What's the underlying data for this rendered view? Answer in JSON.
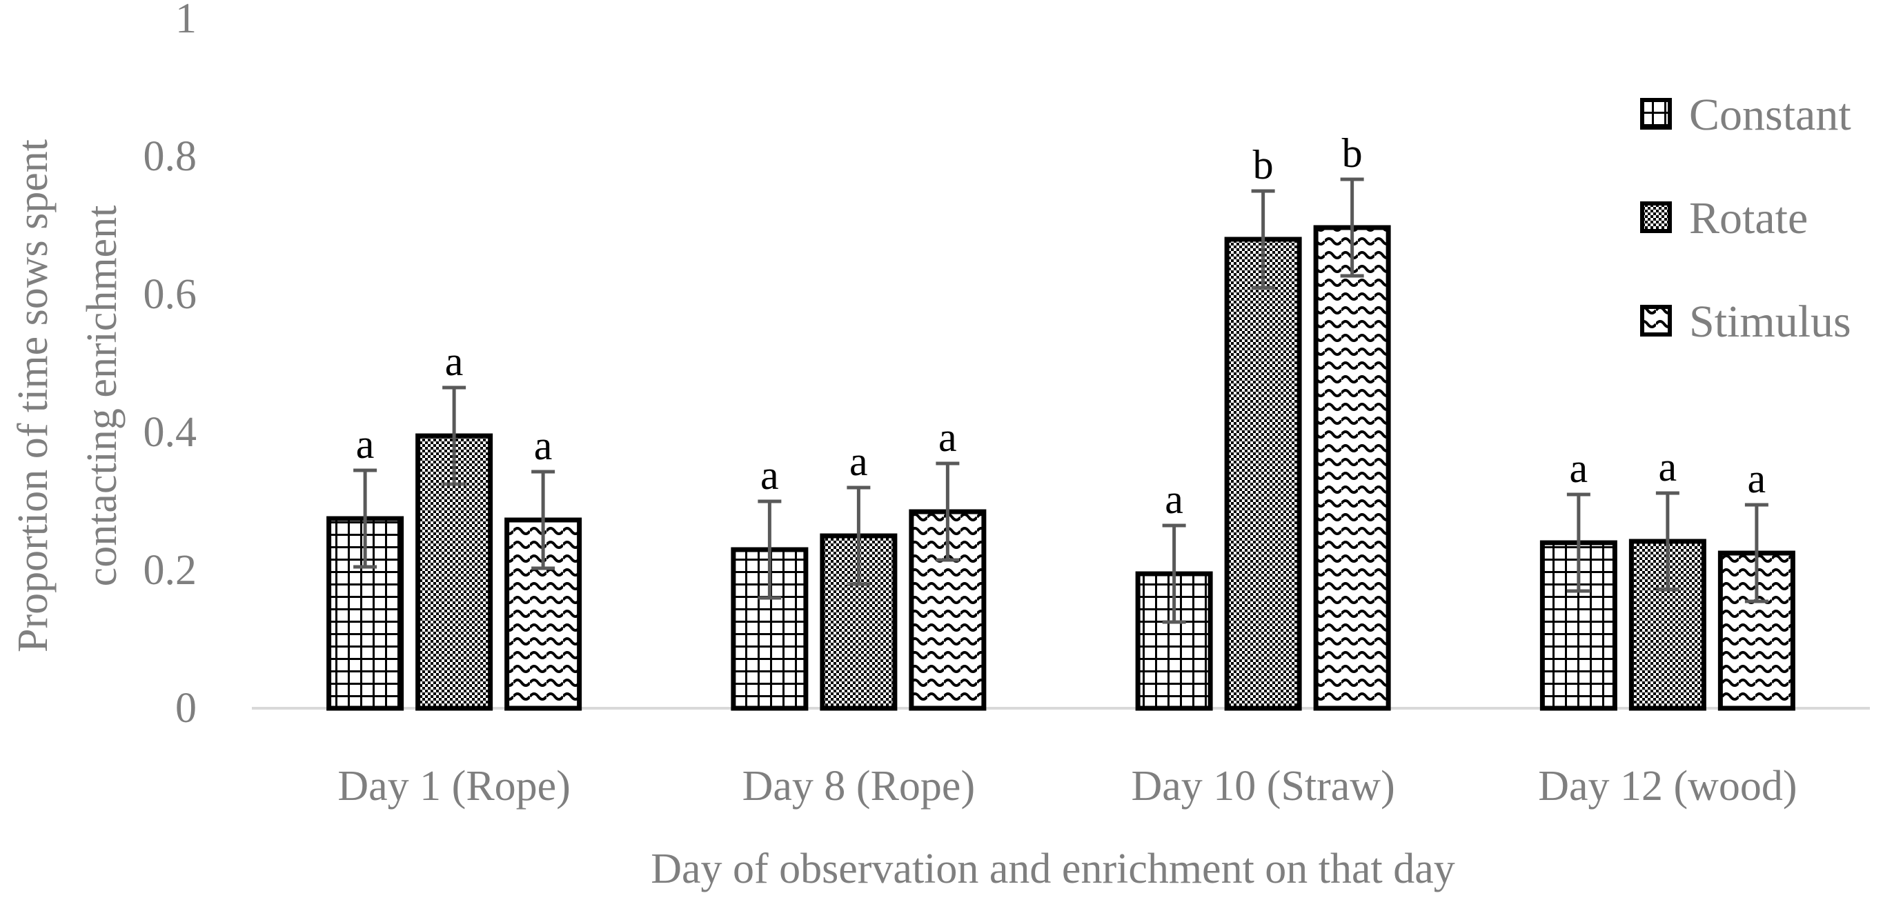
{
  "chart_data": {
    "type": "bar",
    "title": "",
    "xlabel": "Day of observation and enrichment on that day",
    "ylabel_lines": [
      "Proportion of time sows spent",
      "contacting enrichment"
    ],
    "ylim": [
      0,
      1
    ],
    "yticks": [
      0,
      0.2,
      0.4,
      0.6,
      0.8,
      1
    ],
    "ytick_labels": [
      "0",
      "0.2",
      "0.4",
      "0.6",
      "0.8",
      "1"
    ],
    "categories": [
      "Day 1 (Rope)",
      "Day 8 (Rope)",
      "Day 10 (Straw)",
      "Day 12 (wood)"
    ],
    "legend_position": "right",
    "series": [
      {
        "name": "Constant",
        "pattern": "grid",
        "values": [
          0.275,
          0.23,
          0.195,
          0.24
        ],
        "errors": [
          0.07,
          0.07,
          0.07,
          0.07
        ],
        "labels": [
          "a",
          "a",
          "a",
          "a"
        ]
      },
      {
        "name": "Rotate",
        "pattern": "checker",
        "values": [
          0.395,
          0.25,
          0.68,
          0.242
        ],
        "errors": [
          0.07,
          0.07,
          0.07,
          0.07
        ],
        "labels": [
          "a",
          "a",
          "b",
          "a"
        ]
      },
      {
        "name": "Stimulus",
        "pattern": "wave",
        "values": [
          0.273,
          0.285,
          0.697,
          0.225
        ],
        "errors": [
          0.07,
          0.07,
          0.07,
          0.07
        ],
        "labels": [
          "a",
          "a",
          "b",
          "a"
        ]
      }
    ],
    "colors": {
      "bar_stroke": "#000000",
      "error_bar": "#595959",
      "axis_line": "#d9d9d9",
      "text": "#7f7f7f",
      "label_text": "#000000"
    }
  }
}
